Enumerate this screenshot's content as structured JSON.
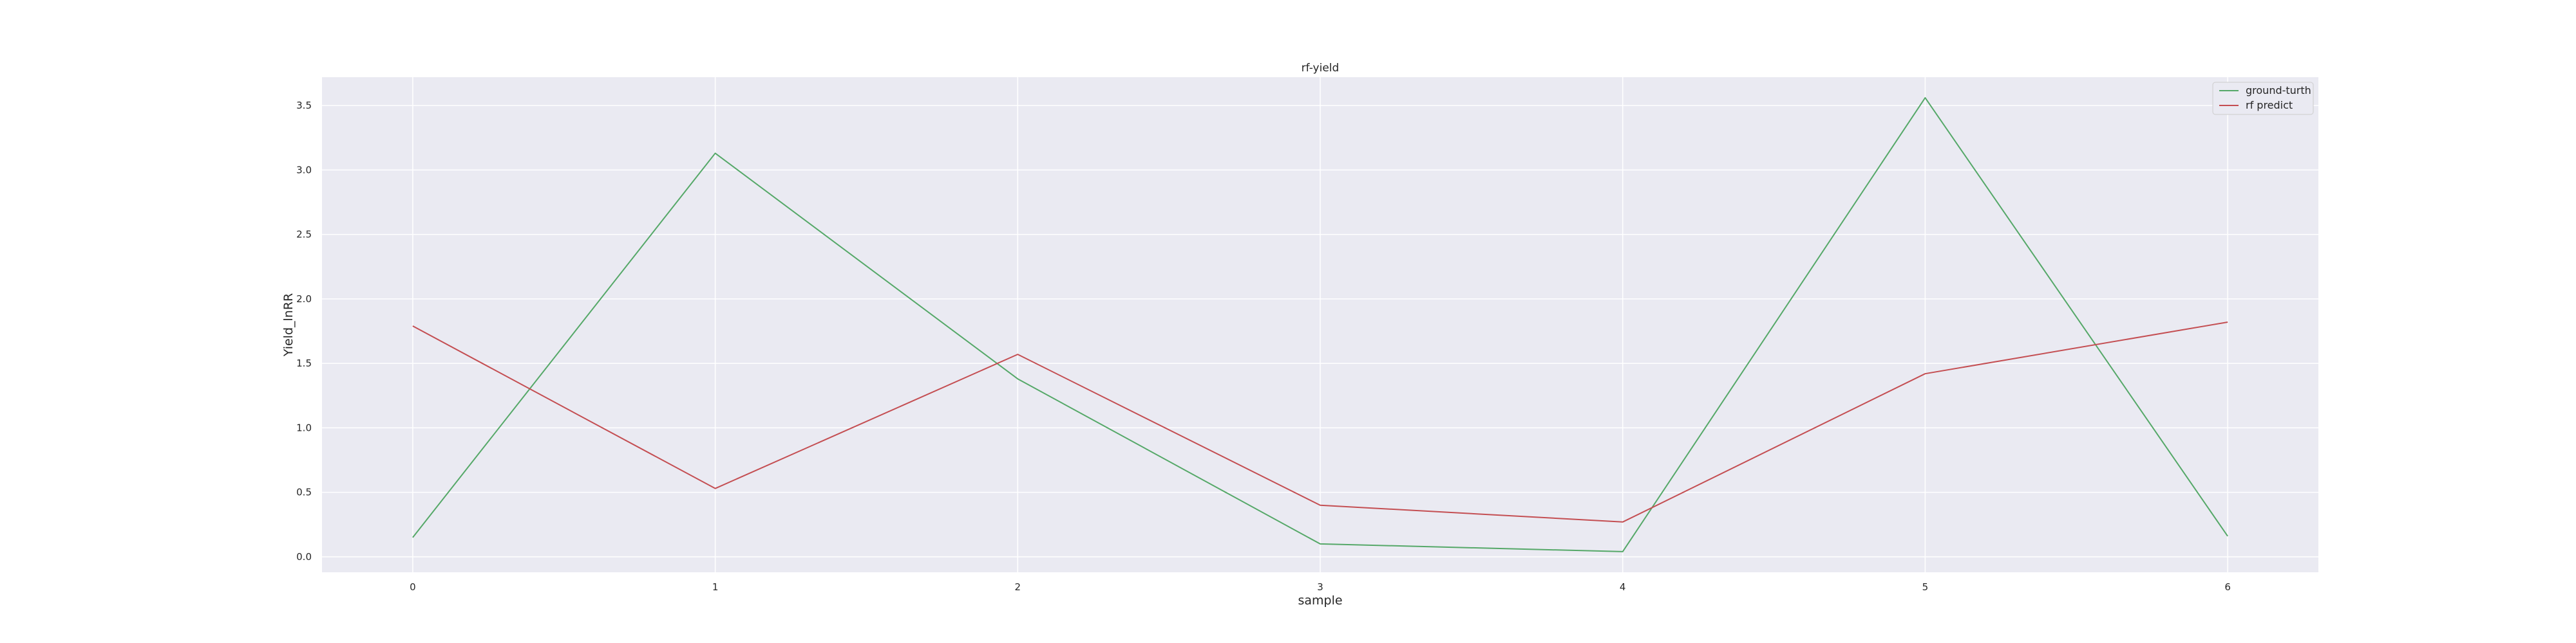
{
  "chart_data": {
    "type": "line",
    "title": "rf-yield",
    "xlabel": "sample",
    "ylabel": "Yield_lnRR",
    "x": [
      0,
      1,
      2,
      3,
      4,
      5,
      6
    ],
    "xlim": [
      -0.3,
      6.3
    ],
    "ylim": [
      -0.12,
      3.72
    ],
    "xticks": [
      0,
      1,
      2,
      3,
      4,
      5,
      6
    ],
    "yticks": [
      0.0,
      0.5,
      1.0,
      1.5,
      2.0,
      2.5,
      3.0,
      3.5
    ],
    "grid": true,
    "legend_position": "top-right",
    "background_color": "#eaeaf2",
    "series": [
      {
        "name": "ground-turth",
        "color": "#55a868",
        "values": [
          0.15,
          3.13,
          1.38,
          0.1,
          0.04,
          3.56,
          0.16
        ]
      },
      {
        "name": "rf predict",
        "color": "#c44e52",
        "values": [
          1.79,
          0.53,
          1.57,
          0.4,
          0.27,
          1.42,
          1.82
        ]
      }
    ]
  }
}
